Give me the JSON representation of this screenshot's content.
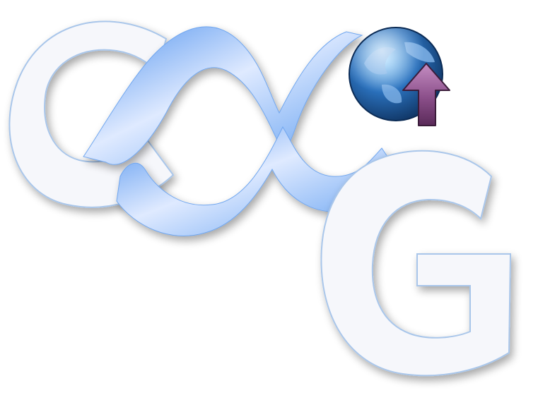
{
  "logo": {
    "letters": [
      "C",
      "∝",
      "G"
    ],
    "colors": {
      "letter_fill": "#f6f7fb",
      "letter_outline": "#a9c6ea",
      "loop_blue": "#5a9bf0",
      "loop_light": "#e6f0ff",
      "globe_ocean": "#1e5fa8",
      "globe_land": "#7fb2e6",
      "arrow_fill": "#8b4f8a",
      "arrow_outline": "#3b1c3a"
    },
    "icons": [
      "globe-icon",
      "upload-arrow-icon"
    ]
  }
}
